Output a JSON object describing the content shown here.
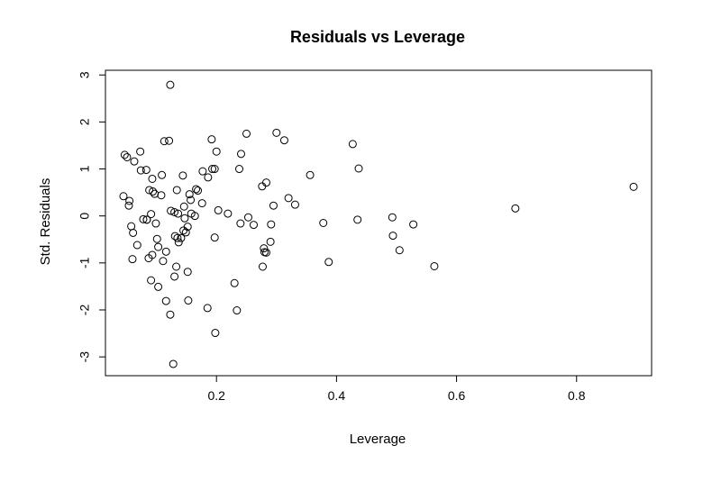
{
  "chart_data": {
    "type": "scatter",
    "title": "Residuals vs Leverage",
    "xlabel": "Leverage",
    "ylabel": "Std. Residuals",
    "xlim": [
      0.015,
      0.925
    ],
    "ylim": [
      -3.4,
      3.1
    ],
    "xticks": [
      0.2,
      0.4,
      0.6,
      0.8
    ],
    "xtick_labels": [
      "0.2",
      "0.4",
      "0.6",
      "0.8"
    ],
    "yticks": [
      -3,
      -2,
      -1,
      0,
      1,
      2,
      3
    ],
    "ytick_labels": [
      "-3",
      "-2",
      "-1",
      "0",
      "1",
      "2",
      "3"
    ],
    "grid": false,
    "marker": "open-circle",
    "points": [
      [
        0.123,
        2.79
      ],
      [
        0.113,
        1.59
      ],
      [
        0.121,
        1.6
      ],
      [
        0.073,
        1.37
      ],
      [
        0.047,
        1.3
      ],
      [
        0.051,
        1.25
      ],
      [
        0.063,
        1.16
      ],
      [
        0.074,
        0.97
      ],
      [
        0.083,
        0.98
      ],
      [
        0.109,
        0.87
      ],
      [
        0.144,
        0.86
      ],
      [
        0.093,
        0.79
      ],
      [
        0.088,
        0.55
      ],
      [
        0.094,
        0.52
      ],
      [
        0.097,
        0.47
      ],
      [
        0.108,
        0.44
      ],
      [
        0.134,
        0.55
      ],
      [
        0.155,
        0.46
      ],
      [
        0.166,
        0.57
      ],
      [
        0.169,
        0.54
      ],
      [
        0.045,
        0.42
      ],
      [
        0.055,
        0.32
      ],
      [
        0.054,
        0.22
      ],
      [
        0.124,
        0.11
      ],
      [
        0.13,
        0.08
      ],
      [
        0.136,
        0.05
      ],
      [
        0.146,
        0.2
      ],
      [
        0.157,
        0.34
      ],
      [
        0.176,
        0.27
      ],
      [
        0.091,
        0.04
      ],
      [
        0.078,
        -0.07
      ],
      [
        0.084,
        -0.08
      ],
      [
        0.099,
        -0.16
      ],
      [
        0.147,
        -0.05
      ],
      [
        0.158,
        0.05
      ],
      [
        0.164,
        0.0
      ],
      [
        0.058,
        -0.22
      ],
      [
        0.061,
        -0.36
      ],
      [
        0.084,
        -0.08
      ],
      [
        0.101,
        -0.49
      ],
      [
        0.116,
        -0.76
      ],
      [
        0.131,
        -0.43
      ],
      [
        0.135,
        -0.47
      ],
      [
        0.141,
        -0.47
      ],
      [
        0.137,
        -0.56
      ],
      [
        0.145,
        -0.31
      ],
      [
        0.149,
        -0.35
      ],
      [
        0.152,
        -0.23
      ],
      [
        0.068,
        -0.62
      ],
      [
        0.103,
        -0.66
      ],
      [
        0.093,
        -0.83
      ],
      [
        0.087,
        -0.9
      ],
      [
        0.06,
        -0.92
      ],
      [
        0.111,
        -0.96
      ],
      [
        0.133,
        -1.08
      ],
      [
        0.152,
        -1.19
      ],
      [
        0.091,
        -1.37
      ],
      [
        0.103,
        -1.51
      ],
      [
        0.13,
        -1.29
      ],
      [
        0.116,
        -1.81
      ],
      [
        0.123,
        -2.1
      ],
      [
        0.153,
        -1.8
      ],
      [
        0.128,
        -3.15
      ],
      [
        0.185,
        -1.96
      ],
      [
        0.198,
        -2.49
      ],
      [
        0.234,
        -2.01
      ],
      [
        0.23,
        -1.43
      ],
      [
        0.186,
        0.82
      ],
      [
        0.177,
        0.95
      ],
      [
        0.193,
        1.0
      ],
      [
        0.197,
        1.0
      ],
      [
        0.2,
        1.37
      ],
      [
        0.192,
        1.63
      ],
      [
        0.203,
        0.12
      ],
      [
        0.219,
        0.05
      ],
      [
        0.197,
        -0.46
      ],
      [
        0.24,
        -0.16
      ],
      [
        0.238,
        1.0
      ],
      [
        0.241,
        1.32
      ],
      [
        0.25,
        1.75
      ],
      [
        0.253,
        -0.03
      ],
      [
        0.262,
        -0.19
      ],
      [
        0.276,
        0.63
      ],
      [
        0.283,
        0.71
      ],
      [
        0.279,
        -0.69
      ],
      [
        0.28,
        -0.77
      ],
      [
        0.283,
        -0.78
      ],
      [
        0.277,
        -1.08
      ],
      [
        0.29,
        -0.55
      ],
      [
        0.291,
        -0.18
      ],
      [
        0.295,
        0.22
      ],
      [
        0.3,
        1.77
      ],
      [
        0.313,
        1.61
      ],
      [
        0.32,
        0.38
      ],
      [
        0.331,
        0.24
      ],
      [
        0.356,
        0.87
      ],
      [
        0.378,
        -0.15
      ],
      [
        0.387,
        -0.98
      ],
      [
        0.427,
        1.53
      ],
      [
        0.437,
        1.01
      ],
      [
        0.435,
        -0.08
      ],
      [
        0.493,
        -0.03
      ],
      [
        0.494,
        -0.42
      ],
      [
        0.505,
        -0.73
      ],
      [
        0.528,
        -0.18
      ],
      [
        0.563,
        -1.07
      ],
      [
        0.698,
        0.16
      ],
      [
        0.895,
        0.62
      ]
    ]
  }
}
